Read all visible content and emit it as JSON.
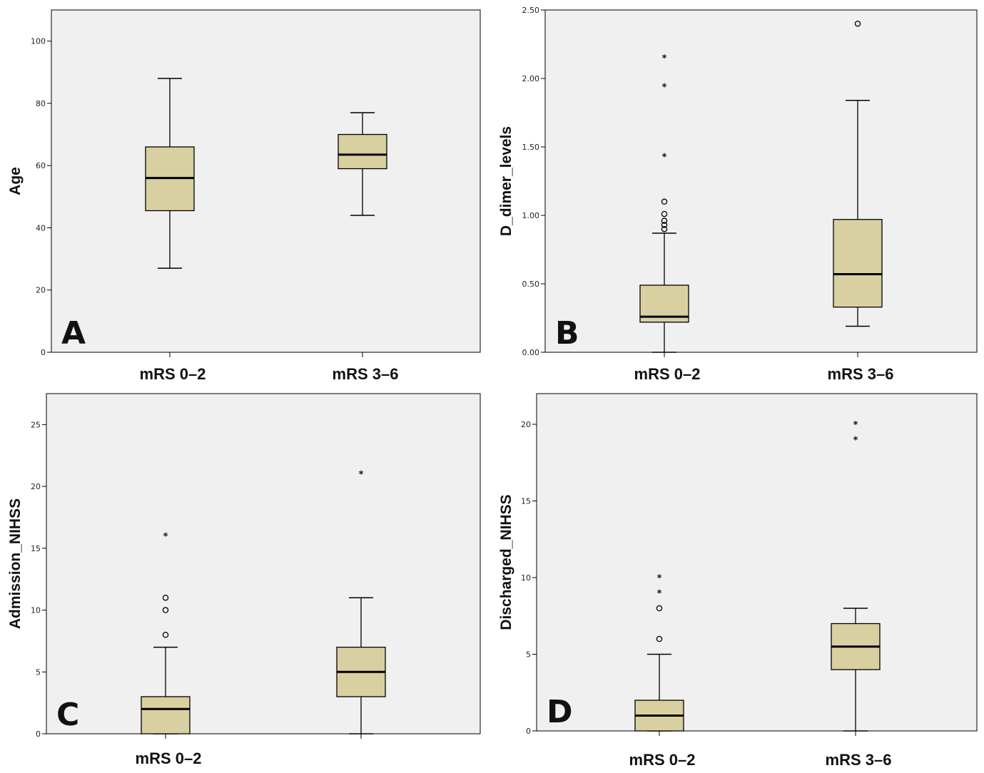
{
  "figure": {
    "box_fill": "#d8d0a0",
    "panel_bg": "#f0f0f0"
  },
  "chart_data": [
    {
      "type": "boxplot",
      "panel_letter": "A",
      "ylabel": "Age",
      "ylim": [
        0,
        110
      ],
      "yticks": [
        "0",
        "20",
        "40",
        "60",
        "80",
        "100"
      ],
      "categories": [
        "mRS 0–2",
        "mRS 3–6"
      ],
      "boxes": [
        {
          "whisker_low": 27,
          "q1": 45.5,
          "median": 56,
          "q3": 66,
          "whisker_high": 88,
          "outliers": [],
          "extremes": []
        },
        {
          "whisker_low": 44,
          "q1": 59,
          "median": 63.5,
          "q3": 70,
          "whisker_high": 77,
          "outliers": [],
          "extremes": []
        }
      ]
    },
    {
      "type": "boxplot",
      "panel_letter": "B",
      "ylabel": "D_dimer_levels",
      "ylim": [
        0,
        2.5
      ],
      "yticks": [
        "0.00",
        "0.50",
        "1.00",
        "1.50",
        "2.00",
        "2.50"
      ],
      "categories": [
        "mRS 0–2",
        "mRS 3–6"
      ],
      "boxes": [
        {
          "whisker_low": 0.0,
          "q1": 0.22,
          "median": 0.26,
          "q3": 0.49,
          "whisker_high": 0.87,
          "outliers": [
            0.9,
            0.93,
            0.96,
            1.01,
            1.1
          ],
          "extremes": [
            1.43,
            1.94,
            2.15
          ]
        },
        {
          "whisker_low": 0.19,
          "q1": 0.33,
          "median": 0.57,
          "q3": 0.97,
          "whisker_high": 1.84,
          "outliers": [
            2.4
          ],
          "extremes": []
        }
      ]
    },
    {
      "type": "boxplot",
      "panel_letter": "C",
      "ylabel": "Admission_NIHSS",
      "ylim": [
        0,
        27.5
      ],
      "yticks": [
        "0",
        "5",
        "10",
        "15",
        "20",
        "25"
      ],
      "categories": [
        "mRS 0–2",
        ""
      ],
      "boxes": [
        {
          "whisker_low": 0,
          "q1": 0,
          "median": 2,
          "q3": 3,
          "whisker_high": 7,
          "outliers": [
            8,
            10,
            11
          ],
          "extremes": [
            16
          ]
        },
        {
          "whisker_low": 0,
          "q1": 3,
          "median": 5,
          "q3": 7,
          "whisker_high": 11,
          "outliers": [],
          "extremes": [
            21
          ]
        }
      ]
    },
    {
      "type": "boxplot",
      "panel_letter": "D",
      "ylabel": "Discharged_NIHSS",
      "ylim": [
        0,
        22
      ],
      "yticks": [
        "0",
        "5",
        "10",
        "15",
        "20"
      ],
      "categories": [
        "mRS 0–2",
        "mRS 3–6"
      ],
      "boxes": [
        {
          "whisker_low": 0,
          "q1": 0,
          "median": 1,
          "q3": 2,
          "whisker_high": 5,
          "outliers": [
            6,
            8
          ],
          "extremes": [
            9,
            10
          ]
        },
        {
          "whisker_low": 0,
          "q1": 4,
          "median": 5.5,
          "q3": 7,
          "whisker_high": 8,
          "outliers": [],
          "extremes": [
            19,
            20
          ]
        }
      ]
    }
  ]
}
